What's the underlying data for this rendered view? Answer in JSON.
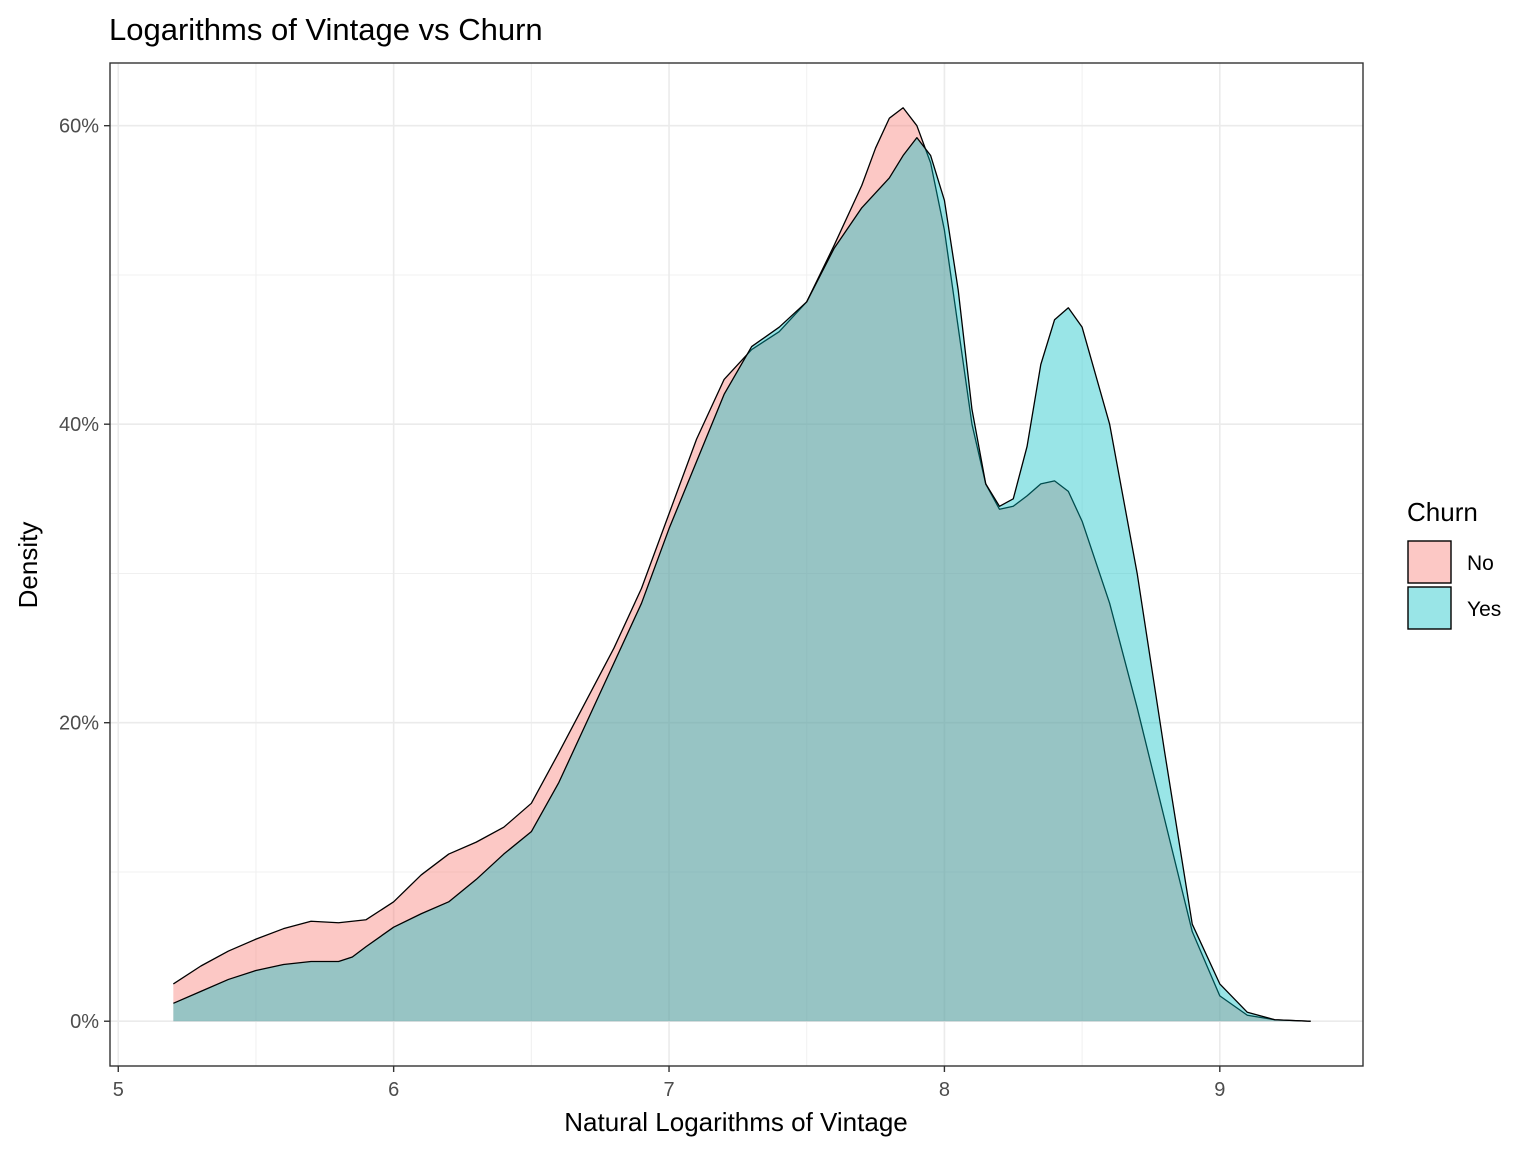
{
  "chart_data": {
    "type": "area",
    "title": "Logarithms of Vintage vs Churn",
    "xlabel": "Natural Logarithms of Vintage",
    "ylabel": "Density",
    "xlim": [
      4.97,
      9.52
    ],
    "ylim": [
      -0.03,
      0.642
    ],
    "x_ticks": [
      5,
      6,
      7,
      8,
      9
    ],
    "x_tick_labels": [
      "5",
      "6",
      "7",
      "8",
      "9"
    ],
    "y_ticks": [
      0,
      0.2,
      0.4,
      0.6
    ],
    "y_tick_labels": [
      "0%",
      "20%",
      "40%",
      "60%"
    ],
    "grid": true,
    "legend": {
      "title": "Churn",
      "position": "right"
    },
    "series": [
      {
        "name": "No",
        "color": "#F8766D",
        "points": [
          [
            5.2,
            0.025
          ],
          [
            5.3,
            0.037
          ],
          [
            5.4,
            0.047
          ],
          [
            5.5,
            0.055
          ],
          [
            5.6,
            0.062
          ],
          [
            5.7,
            0.067
          ],
          [
            5.8,
            0.066
          ],
          [
            5.9,
            0.068
          ],
          [
            6.0,
            0.08
          ],
          [
            6.1,
            0.098
          ],
          [
            6.2,
            0.112
          ],
          [
            6.3,
            0.12
          ],
          [
            6.4,
            0.13
          ],
          [
            6.5,
            0.146
          ],
          [
            6.6,
            0.18
          ],
          [
            6.7,
            0.215
          ],
          [
            6.8,
            0.25
          ],
          [
            6.9,
            0.29
          ],
          [
            7.0,
            0.34
          ],
          [
            7.1,
            0.39
          ],
          [
            7.2,
            0.43
          ],
          [
            7.3,
            0.45
          ],
          [
            7.4,
            0.462
          ],
          [
            7.5,
            0.482
          ],
          [
            7.6,
            0.52
          ],
          [
            7.7,
            0.56
          ],
          [
            7.75,
            0.585
          ],
          [
            7.8,
            0.605
          ],
          [
            7.85,
            0.612
          ],
          [
            7.9,
            0.6
          ],
          [
            7.95,
            0.575
          ],
          [
            8.0,
            0.53
          ],
          [
            8.05,
            0.465
          ],
          [
            8.1,
            0.4
          ],
          [
            8.15,
            0.36
          ],
          [
            8.2,
            0.343
          ],
          [
            8.25,
            0.345
          ],
          [
            8.3,
            0.352
          ],
          [
            8.35,
            0.36
          ],
          [
            8.4,
            0.362
          ],
          [
            8.45,
            0.355
          ],
          [
            8.5,
            0.335
          ],
          [
            8.6,
            0.28
          ],
          [
            8.7,
            0.21
          ],
          [
            8.8,
            0.135
          ],
          [
            8.9,
            0.06
          ],
          [
            9.0,
            0.017
          ],
          [
            9.1,
            0.004
          ],
          [
            9.2,
            0.001
          ],
          [
            9.33,
            0.0
          ]
        ]
      },
      {
        "name": "Yes",
        "color": "#00BFC4",
        "points": [
          [
            5.2,
            0.012
          ],
          [
            5.3,
            0.02
          ],
          [
            5.4,
            0.028
          ],
          [
            5.5,
            0.034
          ],
          [
            5.6,
            0.038
          ],
          [
            5.7,
            0.04
          ],
          [
            5.8,
            0.04
          ],
          [
            5.85,
            0.043
          ],
          [
            5.9,
            0.05
          ],
          [
            6.0,
            0.063
          ],
          [
            6.1,
            0.072
          ],
          [
            6.2,
            0.08
          ],
          [
            6.3,
            0.095
          ],
          [
            6.4,
            0.112
          ],
          [
            6.5,
            0.127
          ],
          [
            6.6,
            0.16
          ],
          [
            6.7,
            0.2
          ],
          [
            6.8,
            0.24
          ],
          [
            6.9,
            0.28
          ],
          [
            7.0,
            0.33
          ],
          [
            7.1,
            0.375
          ],
          [
            7.2,
            0.42
          ],
          [
            7.3,
            0.452
          ],
          [
            7.4,
            0.465
          ],
          [
            7.5,
            0.482
          ],
          [
            7.6,
            0.518
          ],
          [
            7.7,
            0.545
          ],
          [
            7.8,
            0.565
          ],
          [
            7.85,
            0.58
          ],
          [
            7.9,
            0.592
          ],
          [
            7.95,
            0.58
          ],
          [
            8.0,
            0.55
          ],
          [
            8.05,
            0.49
          ],
          [
            8.1,
            0.41
          ],
          [
            8.15,
            0.36
          ],
          [
            8.2,
            0.345
          ],
          [
            8.25,
            0.35
          ],
          [
            8.3,
            0.385
          ],
          [
            8.35,
            0.44
          ],
          [
            8.4,
            0.47
          ],
          [
            8.45,
            0.478
          ],
          [
            8.5,
            0.465
          ],
          [
            8.6,
            0.4
          ],
          [
            8.7,
            0.3
          ],
          [
            8.8,
            0.18
          ],
          [
            8.9,
            0.065
          ],
          [
            9.0,
            0.025
          ],
          [
            9.1,
            0.006
          ],
          [
            9.2,
            0.001
          ],
          [
            9.33,
            0.0
          ]
        ]
      }
    ]
  }
}
